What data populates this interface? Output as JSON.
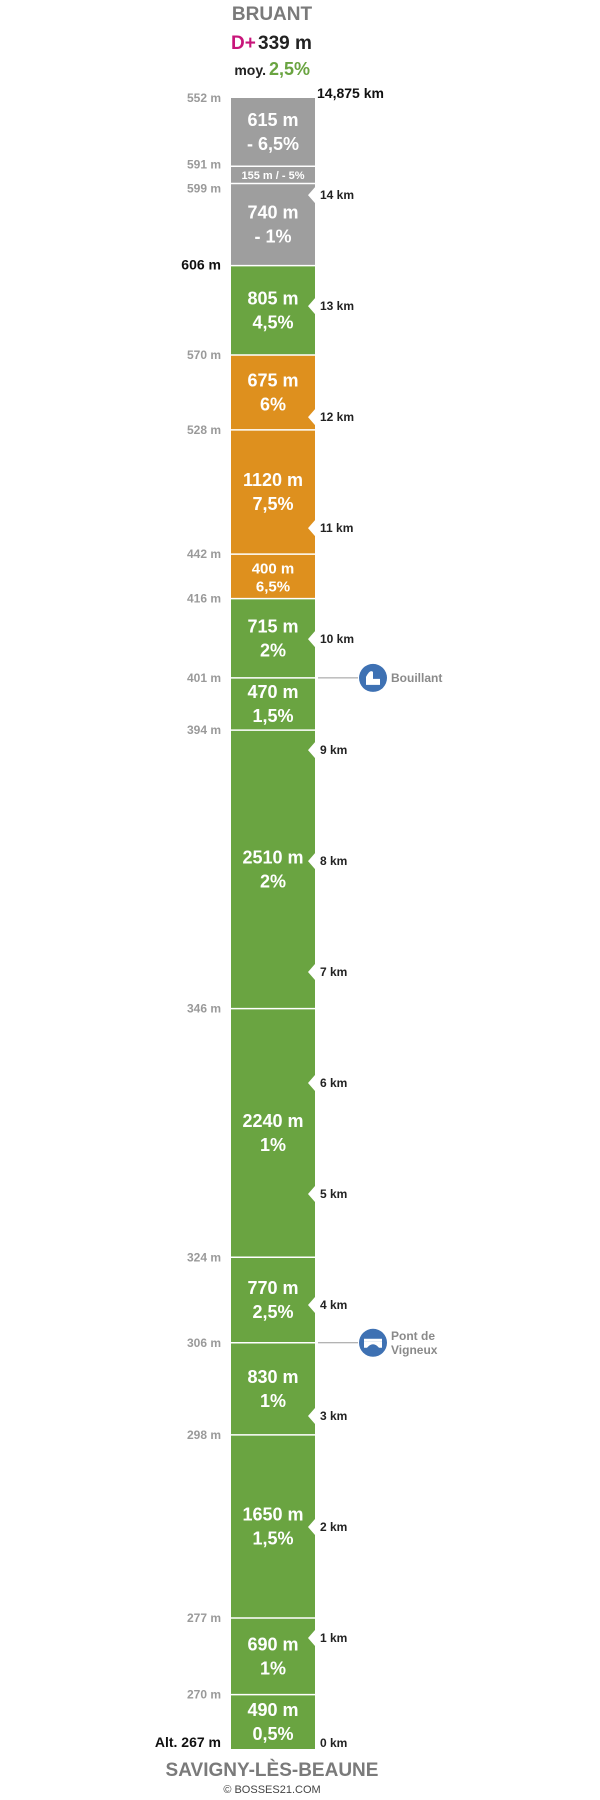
{
  "header": {
    "title": "BRUANT",
    "dplus_label": "D+",
    "dplus_value": "339 m",
    "avg_label": "moy.",
    "avg_value": "2,5%",
    "total_distance": "14,875 km"
  },
  "footer": {
    "start_name": "SAVIGNY-LÈS-BEAUNE",
    "credit": "© BOSSES21.COM"
  },
  "colors": {
    "green": "#6aa441",
    "orange": "#de901e",
    "grey": "#9e9e9e",
    "dplus": "#c8157a",
    "avg": "#6aa441",
    "poi": "#3e71b3"
  },
  "chart_data": {
    "type": "bar",
    "orientation": "vertical-stacked-climb-profile",
    "total_km": 14.875,
    "segments": [
      {
        "length_label": "490 m",
        "gradient_label": "0,5%",
        "length_m": 490,
        "gradient_pct": 0.5,
        "color": "green"
      },
      {
        "length_label": "690 m",
        "gradient_label": "1%",
        "length_m": 690,
        "gradient_pct": 1,
        "color": "green"
      },
      {
        "length_label": "1650 m",
        "gradient_label": "1,5%",
        "length_m": 1650,
        "gradient_pct": 1.5,
        "color": "green"
      },
      {
        "length_label": "830 m",
        "gradient_label": "1%",
        "length_m": 830,
        "gradient_pct": 1,
        "color": "green"
      },
      {
        "length_label": "770 m",
        "gradient_label": "2,5%",
        "length_m": 770,
        "gradient_pct": 2.5,
        "color": "green"
      },
      {
        "length_label": "2240 m",
        "gradient_label": "1%",
        "length_m": 2240,
        "gradient_pct": 1,
        "color": "green"
      },
      {
        "length_label": "2510 m",
        "gradient_label": "2%",
        "length_m": 2510,
        "gradient_pct": 2,
        "color": "green"
      },
      {
        "length_label": "470 m",
        "gradient_label": "1,5%",
        "length_m": 470,
        "gradient_pct": 1.5,
        "color": "green"
      },
      {
        "length_label": "715 m",
        "gradient_label": "2%",
        "length_m": 715,
        "gradient_pct": 2,
        "color": "green"
      },
      {
        "length_label": "400 m",
        "gradient_label": "6,5%",
        "length_m": 400,
        "gradient_pct": 6.5,
        "color": "orange"
      },
      {
        "length_label": "1120 m",
        "gradient_label": "7,5%",
        "length_m": 1120,
        "gradient_pct": 7.5,
        "color": "orange"
      },
      {
        "length_label": "675 m",
        "gradient_label": "6%",
        "length_m": 675,
        "gradient_pct": 6,
        "color": "orange"
      },
      {
        "length_label": "805 m",
        "gradient_label": "4,5%",
        "length_m": 805,
        "gradient_pct": 4.5,
        "color": "green"
      },
      {
        "length_label": "740 m",
        "gradient_label": "- 1%",
        "length_m": 740,
        "gradient_pct": -1,
        "color": "grey"
      },
      {
        "length_label": "155 m",
        "gradient_label": "- 5%",
        "combined_label": "155 m / - 5%",
        "length_m": 155,
        "gradient_pct": -5,
        "color": "grey",
        "compact": true
      },
      {
        "length_label": "615 m",
        "gradient_label": "- 6,5%",
        "length_m": 615,
        "gradient_pct": -6.5,
        "color": "grey"
      }
    ],
    "altitudes": [
      {
        "label": "Alt. 267 m",
        "km": 0,
        "strong": true
      },
      {
        "label": "270 m",
        "km": 0.49
      },
      {
        "label": "277 m",
        "km": 1.18
      },
      {
        "label": "298 m",
        "km": 2.83
      },
      {
        "label": "306 m",
        "km": 3.66
      },
      {
        "label": "324 m",
        "km": 4.43
      },
      {
        "label": "346 m",
        "km": 6.67
      },
      {
        "label": "394 m",
        "km": 9.18
      },
      {
        "label": "401 m",
        "km": 9.65
      },
      {
        "label": "416 m",
        "km": 10.365
      },
      {
        "label": "442 m",
        "km": 10.765
      },
      {
        "label": "528 m",
        "km": 11.885
      },
      {
        "label": "570 m",
        "km": 12.56
      },
      {
        "label": "606 m",
        "km": 13.365,
        "strong": true
      },
      {
        "label": "599 m",
        "km": 14.105
      },
      {
        "label": "591 m",
        "km": 14.26
      },
      {
        "label": "552 m",
        "km": 14.875
      }
    ],
    "km_markers": [
      "0 km",
      "1 km",
      "2 km",
      "3 km",
      "4 km",
      "5 km",
      "6 km",
      "7 km",
      "8 km",
      "9 km",
      "10 km",
      "11 km",
      "12 km",
      "13 km",
      "14 km"
    ],
    "pois": [
      {
        "name_lines": [
          "Bouillant"
        ],
        "km": 9.65,
        "icon": "monument-icon"
      },
      {
        "name_lines": [
          "Pont de",
          "Vigneux"
        ],
        "km": 3.66,
        "icon": "bridge-icon"
      }
    ]
  }
}
